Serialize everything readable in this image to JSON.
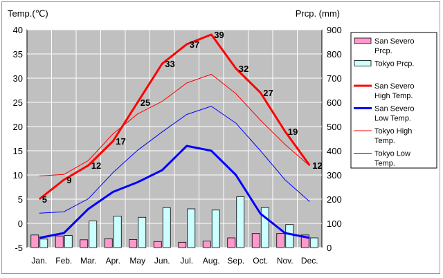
{
  "chart_data": {
    "type": "line",
    "left_axis_label": "Temp.(℃)",
    "right_axis_label": "Prcp. (mm)",
    "categories": [
      "Jan.",
      "Feb.",
      "Mar.",
      "Apr.",
      "May",
      "Jun.",
      "Jul.",
      "Aug.",
      "Sep.",
      "Oct.",
      "Nov.",
      "Dec."
    ],
    "ylim": [
      -5,
      40
    ],
    "y_ticks": [
      40,
      35,
      30,
      25,
      20,
      15,
      10,
      5,
      0,
      -5
    ],
    "y2lim": [
      0,
      900
    ],
    "y2_ticks": [
      900,
      800,
      700,
      600,
      500,
      400,
      300,
      200,
      100,
      0
    ],
    "grid": true,
    "background": "#c0c0c0",
    "bar_series": [
      {
        "name": "San Severo Prcp.",
        "color": "#ff99cc",
        "values": [
          52,
          48,
          32,
          37,
          33,
          25,
          22,
          27,
          40,
          58,
          58,
          52
        ]
      },
      {
        "name": "Tokyo Prcp.",
        "color": "#ccffff",
        "values": [
          35,
          50,
          110,
          130,
          125,
          165,
          160,
          155,
          210,
          165,
          95,
          40
        ]
      }
    ],
    "line_series": [
      {
        "name": "San Severo High Temp.",
        "color": "#ff0000",
        "width": 3,
        "labeled": true,
        "values": [
          5,
          9,
          12,
          17,
          25,
          33,
          37,
          39,
          32,
          27,
          19,
          12
        ]
      },
      {
        "name": "San Severo Low Temp.",
        "color": "#0000ff",
        "width": 3,
        "labeled": false,
        "values": [
          -3,
          -2,
          3,
          6.5,
          8.5,
          11,
          16,
          15,
          10,
          2,
          -2,
          -3
        ]
      },
      {
        "name": "Tokyo High Temp.",
        "color": "#ff0000",
        "width": 1,
        "labeled": false,
        "values": [
          9.8,
          10.1,
          13,
          18.5,
          22.6,
          25.2,
          29,
          30.8,
          26.8,
          21.3,
          16.3,
          11.9
        ]
      },
      {
        "name": "Tokyo Low Temp.",
        "color": "#0000ff",
        "width": 1,
        "labeled": false,
        "values": [
          2.1,
          2.4,
          5.1,
          10.5,
          15.1,
          18.9,
          22.5,
          24.2,
          20.7,
          15,
          9,
          4.5
        ]
      }
    ],
    "legend": {
      "placement": "right",
      "entries": [
        {
          "label": "San Severo Prcp.",
          "kind": "bar",
          "color": "#ff99cc"
        },
        {
          "label": "Tokyo Prcp.",
          "kind": "bar",
          "color": "#ccffff"
        },
        {
          "label": "San Severo High Temp.",
          "kind": "line",
          "color": "#ff0000",
          "width": 3
        },
        {
          "label": "San Severo Low Temp.",
          "kind": "line",
          "color": "#0000ff",
          "width": 3
        },
        {
          "label": "Tokyo High Temp.",
          "kind": "line",
          "color": "#ff0000",
          "width": 1
        },
        {
          "label": "Tokyo Low Temp.",
          "kind": "line",
          "color": "#0000ff",
          "width": 1
        }
      ]
    }
  }
}
